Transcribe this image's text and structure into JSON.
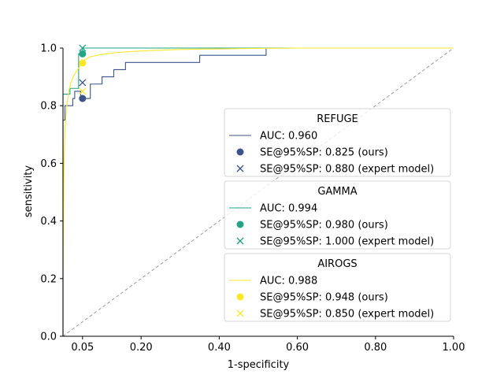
{
  "chart_data": {
    "type": "line",
    "title": "",
    "xlabel": "1-specificity",
    "ylabel": "sensitivity",
    "xlim": [
      0,
      1
    ],
    "ylim": [
      0,
      1
    ],
    "x_ticks": [
      0.05,
      0.2,
      0.4,
      0.6,
      0.8,
      1.0
    ],
    "x_tick_labels": [
      "0.05",
      "0.20",
      "0.40",
      "0.60",
      "0.80",
      "1.00"
    ],
    "y_ticks": [
      0,
      0.2,
      0.4,
      0.6,
      0.8,
      1.0
    ],
    "y_tick_labels": [
      "0.0",
      "0.2",
      "0.4",
      "0.6",
      "0.8",
      "1.0"
    ],
    "grid": false,
    "chance_line": {
      "x": [
        0,
        1
      ],
      "y": [
        0,
        1
      ],
      "color": "#999999",
      "style": "dashed"
    },
    "legend_groups": [
      {
        "title": "REFUGE",
        "color": "#3b528b",
        "entries": [
          {
            "label": "AUC: 0.960",
            "marker": "line"
          },
          {
            "label": "SE@95%SP: 0.825 (ours)",
            "marker": "circle"
          },
          {
            "label": "SE@95%SP: 0.880 (expert model)",
            "marker": "x"
          }
        ]
      },
      {
        "title": "GAMMA",
        "color": "#21a585",
        "entries": [
          {
            "label": "AUC: 0.994",
            "marker": "line"
          },
          {
            "label": "SE@95%SP: 0.980 (ours)",
            "marker": "circle"
          },
          {
            "label": "SE@95%SP: 1.000 (expert model)",
            "marker": "x"
          }
        ]
      },
      {
        "title": "AIROGS",
        "color": "#fde725",
        "entries": [
          {
            "label": "AUC: 0.988",
            "marker": "line"
          },
          {
            "label": "SE@95%SP: 0.948 (ours)",
            "marker": "circle"
          },
          {
            "label": "SE@95%SP: 0.850 (expert model)",
            "marker": "x"
          }
        ]
      }
    ],
    "series": [
      {
        "color": "#3b528b",
        "x": [
          0,
          0,
          0.005,
          0.005,
          0.025,
          0.025,
          0.03,
          0.03,
          0.045,
          0.045,
          0.05,
          0.05,
          0.07,
          0.07,
          0.1,
          0.1,
          0.13,
          0.13,
          0.16,
          0.16,
          0.22,
          0.22,
          0.35,
          0.35,
          0.52,
          0.52,
          1.0
        ],
        "y": [
          0,
          0.75,
          0.75,
          0.8,
          0.8,
          0.825,
          0.825,
          0.85,
          0.85,
          0.825,
          0.825,
          0.825,
          0.825,
          0.875,
          0.875,
          0.9,
          0.9,
          0.925,
          0.925,
          0.95,
          0.95,
          0.95,
          0.95,
          0.975,
          0.975,
          1.0,
          1.0
        ]
      },
      {
        "color": "#21a585",
        "x": [
          0,
          0,
          0.018,
          0.018,
          0.04,
          0.04,
          0.05,
          0.05,
          0.56,
          0.56,
          1.0
        ],
        "y": [
          0,
          0.84,
          0.84,
          0.86,
          0.86,
          0.98,
          0.98,
          1.0,
          1.0,
          1.0,
          1.0
        ],
        "step": true
      },
      {
        "color": "#fde725",
        "x": [
          0,
          0.002,
          0.005,
          0.01,
          0.015,
          0.02,
          0.03,
          0.04,
          0.05,
          0.07,
          0.1,
          0.14,
          0.2,
          0.3,
          0.45,
          0.6,
          1.0
        ],
        "y": [
          0.22,
          0.55,
          0.72,
          0.8,
          0.85,
          0.88,
          0.91,
          0.93,
          0.955,
          0.97,
          0.978,
          0.985,
          0.99,
          0.995,
          0.998,
          1.0,
          1.0
        ]
      }
    ],
    "points": [
      {
        "x": 0.05,
        "y": 0.825,
        "marker": "circle",
        "color": "#3b528b"
      },
      {
        "x": 0.05,
        "y": 0.88,
        "marker": "x",
        "color": "#3b528b"
      },
      {
        "x": 0.05,
        "y": 0.98,
        "marker": "circle",
        "color": "#21a585"
      },
      {
        "x": 0.05,
        "y": 1.0,
        "marker": "x",
        "color": "#21a585"
      },
      {
        "x": 0.05,
        "y": 0.948,
        "marker": "circle",
        "color": "#fde725"
      },
      {
        "x": 0.05,
        "y": 0.85,
        "marker": "x",
        "color": "#fde725"
      }
    ],
    "legend_placement": "lower-right"
  }
}
